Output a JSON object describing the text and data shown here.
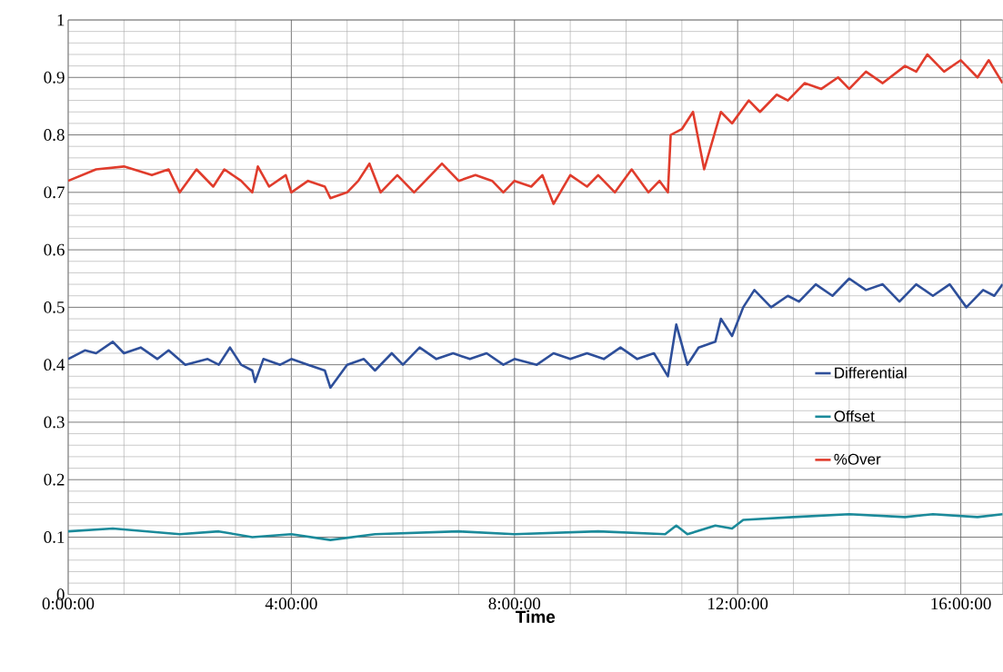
{
  "chart_data": {
    "type": "line",
    "xlabel": "Time",
    "xlim": [
      0,
      16.75
    ],
    "ylim": [
      0,
      1
    ],
    "xticks": [
      {
        "value": 0,
        "label": "0:00:00"
      },
      {
        "value": 4,
        "label": "4:00:00"
      },
      {
        "value": 8,
        "label": "8:00:00"
      },
      {
        "value": 12,
        "label": "12:00:00"
      },
      {
        "value": 16,
        "label": "16:00:00"
      }
    ],
    "yticks": [
      0,
      0.1,
      0.2,
      0.3,
      0.4,
      0.5,
      0.6,
      0.7,
      0.8,
      0.9,
      1
    ],
    "grid": true,
    "legend": "right",
    "marker": "none",
    "line_style": "solid",
    "series": [
      {
        "name": "Differential",
        "color": "#2e4f9a",
        "x": [
          0,
          0.3,
          0.5,
          0.8,
          1.0,
          1.3,
          1.6,
          1.8,
          2.1,
          2.5,
          2.7,
          2.9,
          3.1,
          3.3,
          3.35,
          3.5,
          3.8,
          4.0,
          4.3,
          4.6,
          4.7,
          5.0,
          5.3,
          5.5,
          5.8,
          6.0,
          6.3,
          6.6,
          6.9,
          7.2,
          7.5,
          7.8,
          8.0,
          8.4,
          8.7,
          9.0,
          9.3,
          9.6,
          9.9,
          10.2,
          10.5,
          10.75,
          10.9,
          11.1,
          11.3,
          11.6,
          11.7,
          11.9,
          12.1,
          12.3,
          12.6,
          12.9,
          13.1,
          13.4,
          13.7,
          14.0,
          14.3,
          14.6,
          14.9,
          15.2,
          15.5,
          15.8,
          16.1,
          16.4,
          16.6,
          16.75
        ],
        "values": [
          0.41,
          0.425,
          0.42,
          0.44,
          0.42,
          0.43,
          0.41,
          0.425,
          0.4,
          0.41,
          0.4,
          0.43,
          0.4,
          0.39,
          0.37,
          0.41,
          0.4,
          0.41,
          0.4,
          0.39,
          0.36,
          0.4,
          0.41,
          0.39,
          0.42,
          0.4,
          0.43,
          0.41,
          0.42,
          0.41,
          0.42,
          0.4,
          0.41,
          0.4,
          0.42,
          0.41,
          0.42,
          0.41,
          0.43,
          0.41,
          0.42,
          0.38,
          0.47,
          0.4,
          0.43,
          0.44,
          0.48,
          0.45,
          0.5,
          0.53,
          0.5,
          0.52,
          0.51,
          0.54,
          0.52,
          0.55,
          0.53,
          0.54,
          0.51,
          0.54,
          0.52,
          0.54,
          0.5,
          0.53,
          0.52,
          0.54
        ]
      },
      {
        "name": "Offset",
        "color": "#1b8a9a",
        "x": [
          0,
          0.8,
          2.0,
          2.7,
          3.3,
          4.0,
          4.7,
          5.5,
          7.0,
          8.0,
          9.5,
          10.7,
          10.9,
          11.1,
          11.6,
          11.9,
          12.1,
          13.0,
          14.0,
          15.0,
          15.5,
          16.3,
          16.75
        ],
        "values": [
          0.11,
          0.115,
          0.105,
          0.11,
          0.1,
          0.105,
          0.095,
          0.105,
          0.11,
          0.105,
          0.11,
          0.105,
          0.12,
          0.105,
          0.12,
          0.115,
          0.13,
          0.135,
          0.14,
          0.135,
          0.14,
          0.135,
          0.14
        ]
      },
      {
        "name": "%Over",
        "color": "#e03c2c",
        "x": [
          0,
          0.5,
          1.0,
          1.5,
          1.8,
          2.0,
          2.3,
          2.6,
          2.8,
          3.1,
          3.3,
          3.4,
          3.6,
          3.9,
          4.0,
          4.3,
          4.6,
          4.7,
          5.0,
          5.2,
          5.4,
          5.6,
          5.9,
          6.2,
          6.5,
          6.7,
          7.0,
          7.3,
          7.6,
          7.8,
          8.0,
          8.3,
          8.5,
          8.7,
          9.0,
          9.3,
          9.5,
          9.8,
          10.1,
          10.4,
          10.6,
          10.75,
          10.8,
          11.0,
          11.2,
          11.4,
          11.7,
          11.9,
          12.2,
          12.4,
          12.7,
          12.9,
          13.2,
          13.5,
          13.8,
          14.0,
          14.3,
          14.6,
          15.0,
          15.2,
          15.4,
          15.7,
          16.0,
          16.3,
          16.5,
          16.75
        ],
        "values": [
          0.72,
          0.74,
          0.745,
          0.73,
          0.74,
          0.7,
          0.74,
          0.71,
          0.74,
          0.72,
          0.7,
          0.745,
          0.71,
          0.73,
          0.7,
          0.72,
          0.71,
          0.69,
          0.7,
          0.72,
          0.75,
          0.7,
          0.73,
          0.7,
          0.73,
          0.75,
          0.72,
          0.73,
          0.72,
          0.7,
          0.72,
          0.71,
          0.73,
          0.68,
          0.73,
          0.71,
          0.73,
          0.7,
          0.74,
          0.7,
          0.72,
          0.7,
          0.8,
          0.81,
          0.84,
          0.74,
          0.84,
          0.82,
          0.86,
          0.84,
          0.87,
          0.86,
          0.89,
          0.88,
          0.9,
          0.88,
          0.91,
          0.89,
          0.92,
          0.91,
          0.94,
          0.91,
          0.93,
          0.9,
          0.93,
          0.89
        ]
      }
    ]
  }
}
